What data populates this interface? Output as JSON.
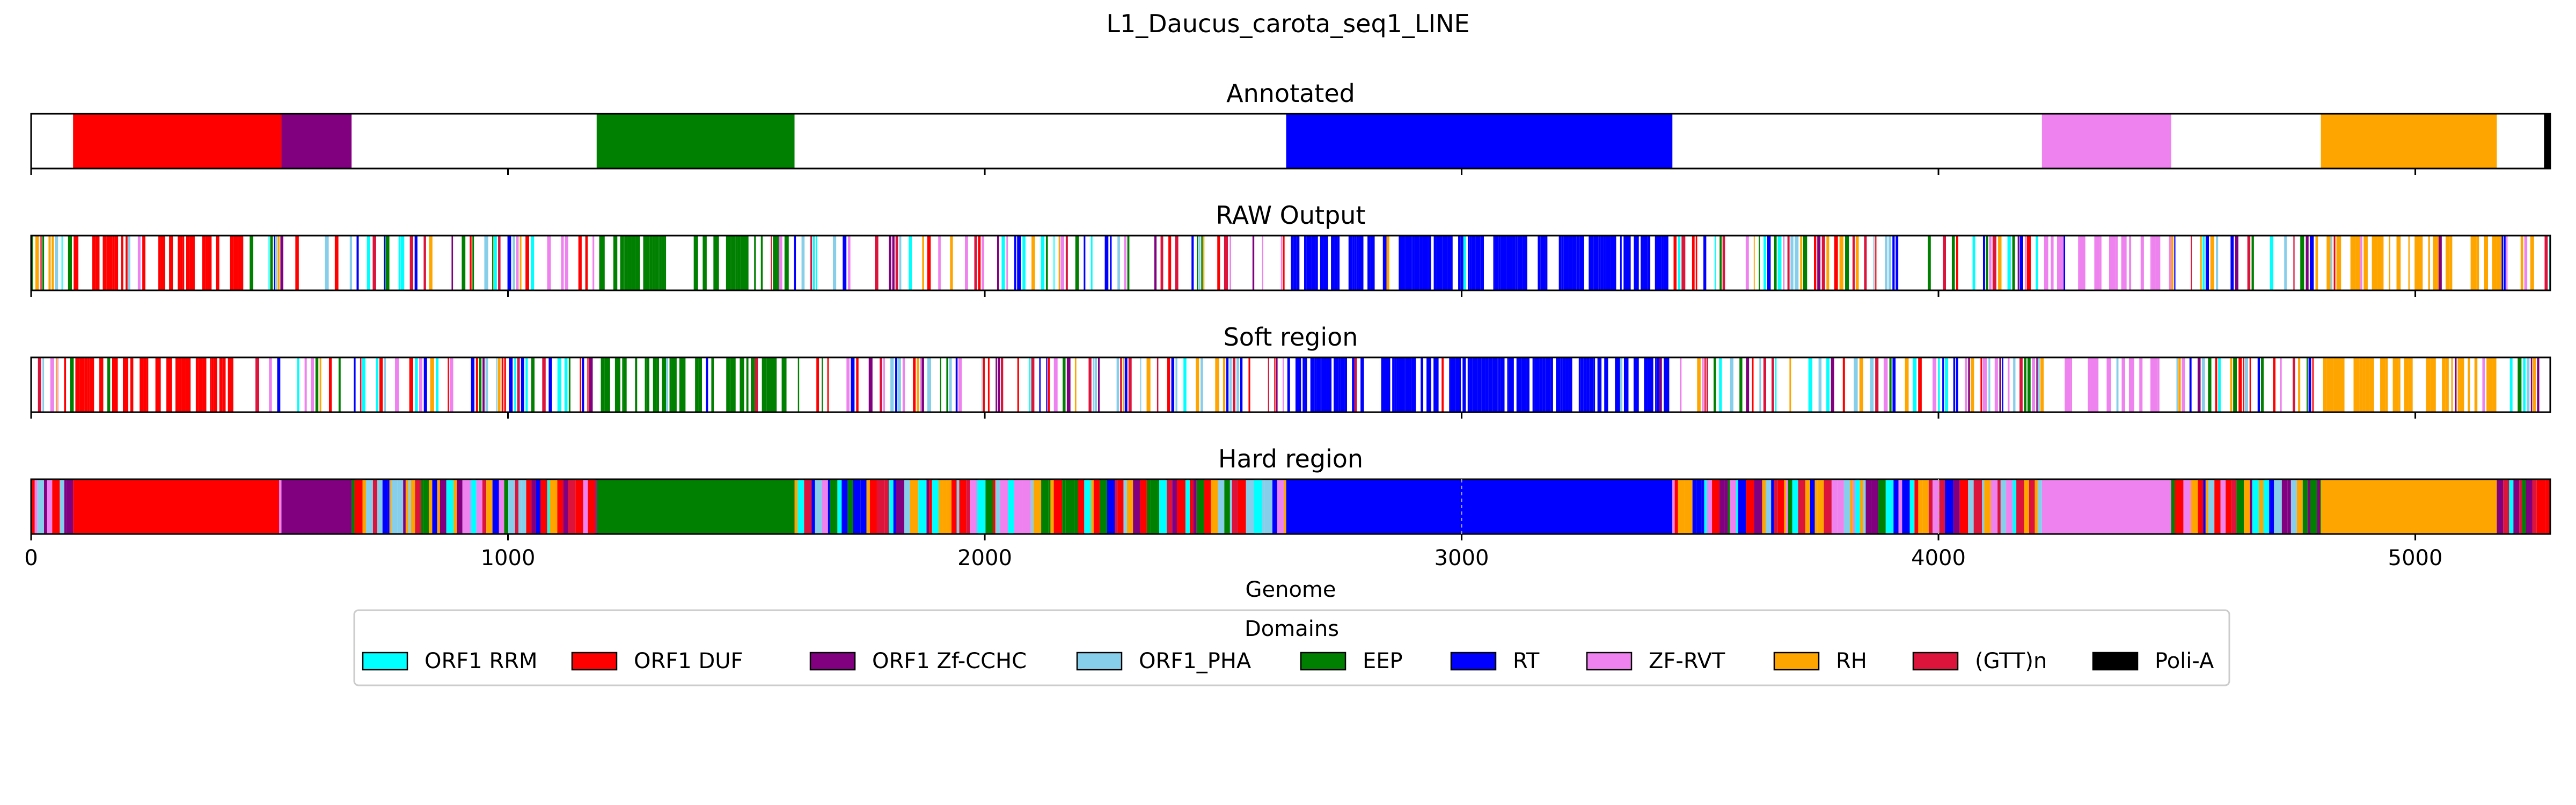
{
  "chart_data": {
    "type": "genome_domain_tracks",
    "title": "L1_Daucus_carota_seq1_LINE",
    "xlabel": "Genome",
    "xlim": [
      0,
      5283
    ],
    "xticks": [
      0,
      1000,
      2000,
      3000,
      4000,
      5000
    ],
    "grid": false,
    "colors": {
      "ORF1 RRM": "#00ffff",
      "ORF1 DUF": "#ff0000",
      "ORF1 Zf-CCHC": "#800080",
      "ORF1_PHA": "#87ceeb",
      "EEP": "#008000",
      "RT": "#0000ff",
      "ZF-RVT": "#ee82ee",
      "RH": "#ffa500",
      "(GTT)n": "#dc143c",
      "Poli-A": "#000000"
    },
    "tracks": [
      {
        "title": "Annotated",
        "mode": "segments",
        "segments": [
          {
            "domain": "ORF1 DUF",
            "start": 88,
            "end": 525
          },
          {
            "domain": "ORF1 Zf-CCHC",
            "start": 525,
            "end": 672
          },
          {
            "domain": "EEP",
            "start": 1186,
            "end": 1601
          },
          {
            "domain": "RT",
            "start": 2632,
            "end": 3442
          },
          {
            "domain": "ZF-RVT",
            "start": 4217,
            "end": 4488
          },
          {
            "domain": "RH",
            "start": 4802,
            "end": 5171
          },
          {
            "domain": "Poli-A",
            "start": 5270,
            "end": 5283
          }
        ]
      },
      {
        "title": "RAW Output",
        "mode": "noisy",
        "seed": 11,
        "dominant": [
          {
            "domain": "ORF1 DUF",
            "start": 88,
            "end": 450,
            "fill": 0.55
          },
          {
            "domain": "EEP",
            "start": 1186,
            "end": 1601,
            "fill": 0.6
          },
          {
            "domain": "RT",
            "start": 2632,
            "end": 3442,
            "fill": 0.65
          },
          {
            "domain": "ZF-RVT",
            "start": 4217,
            "end": 4488,
            "fill": 0.45
          },
          {
            "domain": "RH",
            "start": 4802,
            "end": 5171,
            "fill": 0.5
          }
        ]
      },
      {
        "title": "Soft region",
        "mode": "noisy",
        "seed": 29,
        "dominant": [
          {
            "domain": "ORF1 DUF",
            "start": 88,
            "end": 450,
            "fill": 0.58
          },
          {
            "domain": "EEP",
            "start": 1186,
            "end": 1601,
            "fill": 0.62
          },
          {
            "domain": "RT",
            "start": 2632,
            "end": 3442,
            "fill": 0.68
          },
          {
            "domain": "ZF-RVT",
            "start": 4217,
            "end": 4488,
            "fill": 0.47
          },
          {
            "domain": "RH",
            "start": 4802,
            "end": 5171,
            "fill": 0.52
          }
        ]
      },
      {
        "title": "Hard region",
        "mode": "hard",
        "seed": 53,
        "segments": [
          {
            "domain": "ORF1 DUF",
            "start": 88,
            "end": 520
          },
          {
            "domain": "ORF1 Zf-CCHC",
            "start": 525,
            "end": 672
          },
          {
            "domain": "EEP",
            "start": 1186,
            "end": 1601
          },
          {
            "domain": "RT",
            "start": 2632,
            "end": 3442
          },
          {
            "domain": "ZF-RVT",
            "start": 4217,
            "end": 4488
          },
          {
            "domain": "RH",
            "start": 4802,
            "end": 5171
          }
        ]
      }
    ],
    "legend": {
      "title": "Domains",
      "placement": "bottom-center",
      "entries": [
        "ORF1 RRM",
        "ORF1 DUF",
        "ORF1 Zf-CCHC",
        "ORF1_PHA",
        "EEP",
        "RT",
        "ZF-RVT",
        "RH",
        "(GTT)n",
        "Poli-A"
      ]
    }
  }
}
